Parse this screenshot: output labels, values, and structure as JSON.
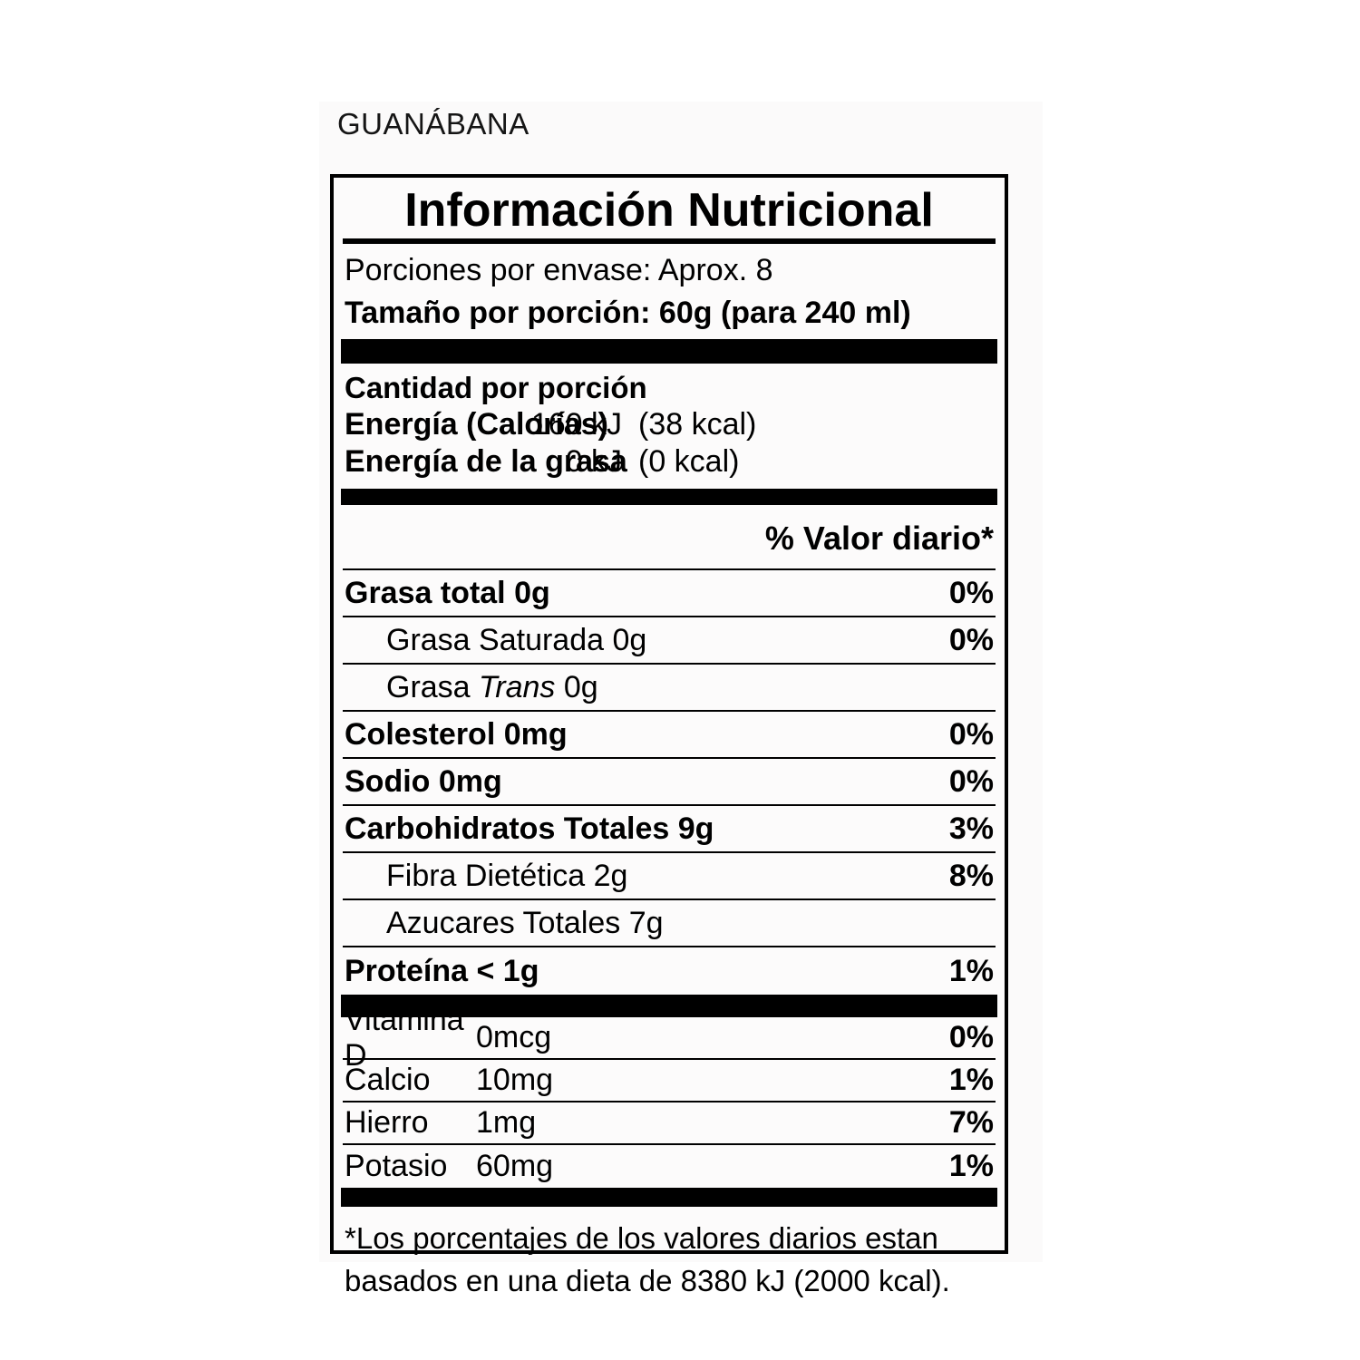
{
  "page": {
    "product_name": "GUANÁBANA"
  },
  "label": {
    "title": "Información Nutricional",
    "servings_line": "Porciones por envase: Aprox. 8",
    "serving_size_line": "Tamaño por porción: 60g (para 240 ml)",
    "amount_heading": "Cantidad por porción",
    "energy_rows": [
      {
        "label": "Energía (Calorías)",
        "kj": "160 kJ",
        "kcal": "(38 kcal)"
      },
      {
        "label": "Energía de la grasa",
        "kj": "0 kJ",
        "kcal": "(0 kcal)"
      }
    ],
    "daily_value_header": "% Valor diario*",
    "nutrient_rows": [
      {
        "label": "Grasa total 0g",
        "dv": "0%"
      },
      {
        "label": "Grasa Saturada 0g",
        "dv": "0%"
      },
      {
        "pre": "Grasa ",
        "italic": "Trans",
        "post": " 0g",
        "dv": ""
      },
      {
        "label": "Colesterol 0mg",
        "dv": "0%"
      },
      {
        "label": "Sodio 0mg",
        "dv": "0%"
      },
      {
        "label": "Carbohidratos Totales 9g",
        "dv": "3%"
      },
      {
        "label": "Fibra Dietética 2g",
        "dv": "8%"
      },
      {
        "label": "Azucares Totales 7g",
        "dv": ""
      },
      {
        "label": "Proteína < 1g",
        "dv": "1%"
      }
    ],
    "micronutrient_rows": [
      {
        "label": "Vitamina D",
        "amount": "0mcg",
        "dv": "0%"
      },
      {
        "label": "Calcio",
        "amount": "10mg",
        "dv": "1%"
      },
      {
        "label": "Hierro",
        "amount": "1mg",
        "dv": "7%"
      },
      {
        "label": "Potasio",
        "amount": "60mg",
        "dv": "1%"
      }
    ],
    "footnote": "*Los porcentajes de los valores diarios estan basados en una dieta de 8380 kJ (2000 kcal)."
  }
}
